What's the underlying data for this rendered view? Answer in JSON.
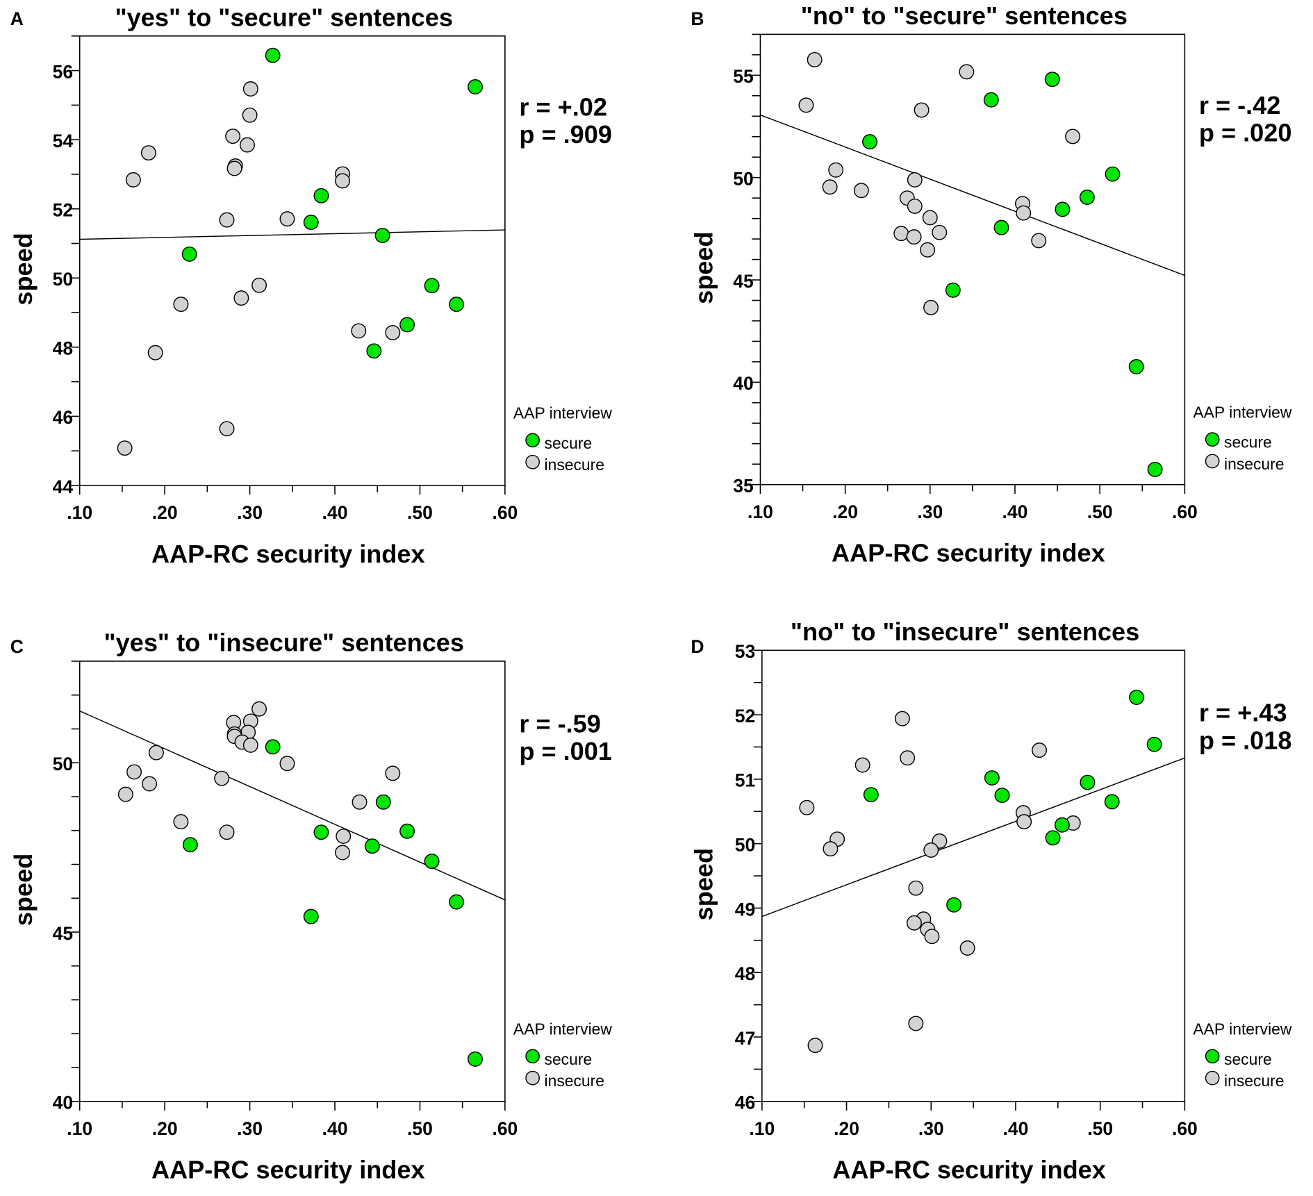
{
  "chart_data": [
    {
      "type": "scatter",
      "panel": "A",
      "title": "\"yes\" to \"secure\" sentences",
      "xlabel": "AAP-RC security index",
      "ylabel": "speed",
      "xlim": [
        0.1,
        0.6
      ],
      "ylim": [
        44,
        57
      ],
      "xtick_labels": [
        ".10",
        ".20",
        ".30",
        ".40",
        ".50",
        ".60"
      ],
      "ytick_values": [
        44,
        46,
        48,
        50,
        52,
        54,
        56
      ],
      "ytick_labels": [
        "44",
        "46",
        "48",
        "50",
        "52",
        "54",
        "56"
      ],
      "yminor_step": 1,
      "annotation": {
        "r": "r = +.02",
        "p": "p = .909"
      },
      "legend": {
        "title": "AAP interview",
        "secure": "secure",
        "insecure": "insecure",
        "placement": "bottom-right"
      },
      "regression": [
        [
          0.1,
          51.12
        ],
        [
          0.6,
          51.39
        ]
      ],
      "series": [
        {
          "name": "secure",
          "color": "#00e600",
          "points": [
            [
              0.327,
              56.44
            ],
            [
              0.565,
              55.53
            ],
            [
              0.384,
              52.38
            ],
            [
              0.372,
              51.61
            ],
            [
              0.456,
              51.23
            ],
            [
              0.229,
              50.69
            ],
            [
              0.514,
              49.78
            ],
            [
              0.543,
              49.24
            ],
            [
              0.485,
              48.65
            ],
            [
              0.446,
              47.89
            ]
          ]
        },
        {
          "name": "insecure",
          "color": "#d3d3d3",
          "points": [
            [
              0.301,
              55.47
            ],
            [
              0.3,
              54.71
            ],
            [
              0.28,
              54.1
            ],
            [
              0.297,
              53.85
            ],
            [
              0.181,
              53.62
            ],
            [
              0.283,
              53.24
            ],
            [
              0.282,
              53.17
            ],
            [
              0.163,
              52.84
            ],
            [
              0.409,
              53.01
            ],
            [
              0.409,
              52.81
            ],
            [
              0.273,
              51.68
            ],
            [
              0.344,
              51.71
            ],
            [
              0.311,
              49.79
            ],
            [
              0.29,
              49.42
            ],
            [
              0.219,
              49.24
            ],
            [
              0.428,
              48.47
            ],
            [
              0.468,
              48.42
            ],
            [
              0.189,
              47.84
            ],
            [
              0.273,
              45.64
            ],
            [
              0.153,
              45.08
            ]
          ]
        }
      ]
    },
    {
      "type": "scatter",
      "panel": "B",
      "title": "\"no\" to \"secure\" sentences",
      "xlabel": "AAP-RC security index",
      "ylabel": "speed",
      "xlim": [
        0.1,
        0.6
      ],
      "ylim": [
        35,
        57
      ],
      "xtick_labels": [
        ".10",
        ".20",
        ".30",
        ".40",
        ".50",
        ".60"
      ],
      "ytick_values": [
        35,
        40,
        45,
        50,
        55
      ],
      "ytick_labels": [
        "35",
        "40",
        "45",
        "50",
        "55"
      ],
      "yminor_step": 1,
      "annotation": {
        "r": "r = -.42",
        "p": "p = .020"
      },
      "legend": {
        "title": "AAP interview",
        "secure": "secure",
        "insecure": "insecure",
        "placement": "bottom-right"
      },
      "regression": [
        [
          0.1,
          53.06
        ],
        [
          0.6,
          45.22
        ]
      ],
      "series": [
        {
          "name": "secure",
          "color": "#00e600",
          "points": [
            [
              0.444,
              54.8
            ],
            [
              0.372,
              53.8
            ],
            [
              0.229,
              51.75
            ],
            [
              0.515,
              50.17
            ],
            [
              0.485,
              49.04
            ],
            [
              0.456,
              48.45
            ],
            [
              0.384,
              47.56
            ],
            [
              0.327,
              44.5
            ],
            [
              0.543,
              40.76
            ],
            [
              0.565,
              35.74
            ]
          ]
        },
        {
          "name": "insecure",
          "color": "#d3d3d3",
          "points": [
            [
              0.164,
              55.76
            ],
            [
              0.154,
              53.54
            ],
            [
              0.343,
              55.17
            ],
            [
              0.29,
              53.3
            ],
            [
              0.468,
              52.01
            ],
            [
              0.189,
              50.37
            ],
            [
              0.182,
              49.54
            ],
            [
              0.219,
              49.37
            ],
            [
              0.282,
              49.89
            ],
            [
              0.273,
              49.0
            ],
            [
              0.282,
              48.6
            ],
            [
              0.409,
              48.73
            ],
            [
              0.41,
              48.27
            ],
            [
              0.3,
              48.04
            ],
            [
              0.266,
              47.27
            ],
            [
              0.281,
              47.1
            ],
            [
              0.311,
              47.32
            ],
            [
              0.297,
              46.47
            ],
            [
              0.428,
              46.92
            ],
            [
              0.301,
              43.65
            ]
          ]
        }
      ]
    },
    {
      "type": "scatter",
      "panel": "C",
      "title": "\"yes\" to \"insecure\" sentences",
      "xlabel": "AAP-RC security index",
      "ylabel": "speed",
      "xlim": [
        0.1,
        0.6
      ],
      "ylim": [
        40,
        53
      ],
      "xtick_labels": [
        ".10",
        ".20",
        ".30",
        ".40",
        ".50",
        ".60"
      ],
      "ytick_values": [
        40,
        45,
        50
      ],
      "ytick_labels": [
        "40",
        "45",
        "50"
      ],
      "yminor_step": 1,
      "annotation": {
        "r": "r = -.59",
        "p": "p = .001"
      },
      "legend": {
        "title": "AAP interview",
        "secure": "secure",
        "insecure": "insecure",
        "placement": "bottom-right"
      },
      "regression": [
        [
          0.1,
          51.53
        ],
        [
          0.6,
          45.95
        ]
      ],
      "series": [
        {
          "name": "secure",
          "color": "#00e600",
          "points": [
            [
              0.327,
              50.47
            ],
            [
              0.457,
              48.84
            ],
            [
              0.384,
              47.95
            ],
            [
              0.485,
              47.98
            ],
            [
              0.23,
              47.58
            ],
            [
              0.444,
              47.54
            ],
            [
              0.514,
              47.09
            ],
            [
              0.543,
              45.89
            ],
            [
              0.372,
              45.46
            ],
            [
              0.565,
              41.25
            ]
          ]
        },
        {
          "name": "insecure",
          "color": "#d3d3d3",
          "points": [
            [
              0.311,
              51.59
            ],
            [
              0.281,
              51.19
            ],
            [
              0.301,
              51.23
            ],
            [
              0.298,
              50.9
            ],
            [
              0.282,
              50.85
            ],
            [
              0.282,
              50.78
            ],
            [
              0.291,
              50.61
            ],
            [
              0.301,
              50.52
            ],
            [
              0.19,
              50.3
            ],
            [
              0.344,
              49.98
            ],
            [
              0.164,
              49.73
            ],
            [
              0.468,
              49.69
            ],
            [
              0.182,
              49.38
            ],
            [
              0.267,
              49.54
            ],
            [
              0.154,
              49.07
            ],
            [
              0.429,
              48.84
            ],
            [
              0.219,
              48.26
            ],
            [
              0.273,
              47.95
            ],
            [
              0.41,
              47.83
            ],
            [
              0.409,
              47.35
            ]
          ]
        }
      ]
    },
    {
      "type": "scatter",
      "panel": "D",
      "title": "\"no\" to \"insecure\" sentences",
      "xlabel": "AAP-RC security index",
      "ylabel": "speed",
      "xlim": [
        0.1,
        0.6
      ],
      "ylim": [
        46,
        53
      ],
      "xtick_labels": [
        ".10",
        ".20",
        ".30",
        ".40",
        ".50",
        ".60"
      ],
      "ytick_values": [
        46,
        47,
        48,
        49,
        50,
        51,
        52,
        53
      ],
      "ytick_labels": [
        "46",
        "47",
        "48",
        "49",
        "50",
        "51",
        "52",
        "53"
      ],
      "yminor_step": 0.5,
      "annotation": {
        "r": "r = +.43",
        "p": "p = .018"
      },
      "legend": {
        "title": "AAP interview",
        "secure": "secure",
        "insecure": "insecure",
        "placement": "bottom-right"
      },
      "regression": [
        [
          0.1,
          48.87
        ],
        [
          0.6,
          51.33
        ]
      ],
      "series": [
        {
          "name": "secure",
          "color": "#00e600",
          "points": [
            [
              0.543,
              52.27
            ],
            [
              0.564,
              51.54
            ],
            [
              0.372,
              51.02
            ],
            [
              0.485,
              50.95
            ],
            [
              0.229,
              50.76
            ],
            [
              0.384,
              50.75
            ],
            [
              0.514,
              50.65
            ],
            [
              0.455,
              50.29
            ],
            [
              0.444,
              50.09
            ],
            [
              0.327,
              49.05
            ]
          ]
        },
        {
          "name": "insecure",
          "color": "#d3d3d3",
          "points": [
            [
              0.266,
              51.94
            ],
            [
              0.428,
              51.45
            ],
            [
              0.272,
              51.33
            ],
            [
              0.219,
              51.22
            ],
            [
              0.153,
              50.56
            ],
            [
              0.409,
              50.48
            ],
            [
              0.41,
              50.34
            ],
            [
              0.468,
              50.32
            ],
            [
              0.189,
              50.07
            ],
            [
              0.181,
              49.92
            ],
            [
              0.31,
              50.04
            ],
            [
              0.3,
              49.9
            ],
            [
              0.282,
              49.31
            ],
            [
              0.291,
              48.83
            ],
            [
              0.28,
              48.77
            ],
            [
              0.296,
              48.67
            ],
            [
              0.301,
              48.56
            ],
            [
              0.343,
              48.38
            ],
            [
              0.282,
              47.21
            ],
            [
              0.163,
              46.87
            ]
          ]
        }
      ]
    }
  ]
}
